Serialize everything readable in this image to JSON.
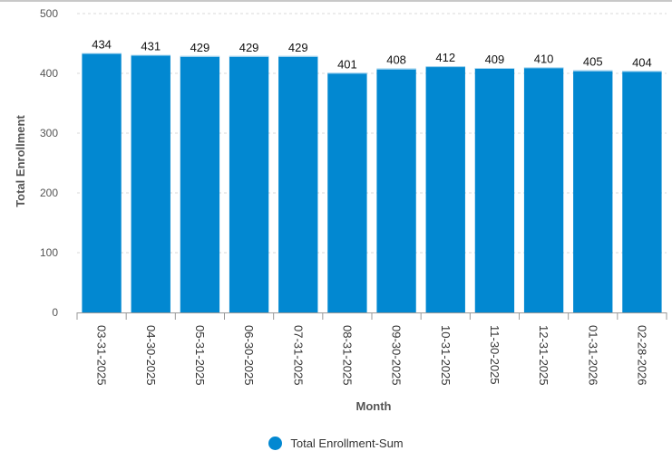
{
  "chart_data": {
    "type": "bar",
    "title": "",
    "xlabel": "Month",
    "ylabel": "Total Enrollment",
    "ylim": [
      0,
      500
    ],
    "yticks": [
      0,
      100,
      200,
      300,
      400,
      500
    ],
    "grid": true,
    "legend_position": "bottom",
    "bar_color": "#0288d1",
    "categories": [
      "03-31-2025",
      "04-30-2025",
      "05-31-2025",
      "06-30-2025",
      "07-31-2025",
      "08-31-2025",
      "09-30-2025",
      "10-31-2025",
      "11-30-2025",
      "12-31-2025",
      "01-31-2026",
      "02-28-2026"
    ],
    "series": [
      {
        "name": "Total Enrollment-Sum",
        "values": [
          434,
          431,
          429,
          429,
          429,
          401,
          408,
          412,
          409,
          410,
          405,
          404
        ]
      }
    ]
  }
}
